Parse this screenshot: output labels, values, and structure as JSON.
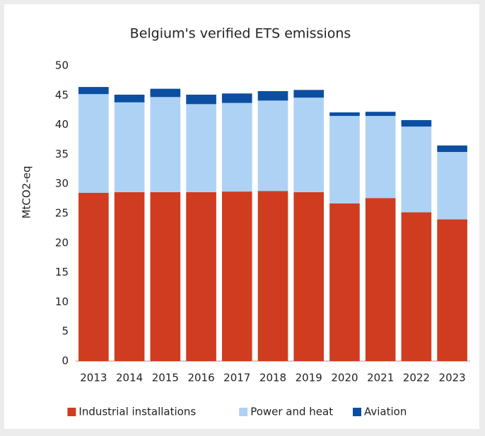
{
  "chart_data": {
    "type": "stacked-bar",
    "title": "Belgium's verified ETS emissions",
    "y_label": "MtCO2-eq",
    "categories": [
      "2013",
      "2014",
      "2015",
      "2016",
      "2017",
      "2018",
      "2019",
      "2020",
      "2021",
      "2022",
      "2023"
    ],
    "series": [
      {
        "name": "Industrial installations",
        "color": "#d03c1f",
        "values": [
          28.5,
          28.6,
          28.6,
          28.6,
          28.7,
          28.8,
          28.6,
          26.7,
          27.6,
          25.2,
          24.0
        ]
      },
      {
        "name": "Power and heat",
        "color": "#aed2f4",
        "values": [
          16.7,
          15.2,
          16.1,
          14.9,
          15.0,
          15.3,
          16.0,
          14.8,
          13.9,
          14.5,
          11.4
        ]
      },
      {
        "name": "Aviation",
        "color": "#0b4ea2",
        "values": [
          1.2,
          1.3,
          1.4,
          1.6,
          1.6,
          1.6,
          1.3,
          0.6,
          0.7,
          1.1,
          1.1
        ]
      }
    ],
    "ylim": [
      0,
      50
    ],
    "yticks": [
      0,
      5,
      10,
      15,
      20,
      25,
      30,
      35,
      40,
      45,
      50
    ],
    "legend": "bottom"
  }
}
